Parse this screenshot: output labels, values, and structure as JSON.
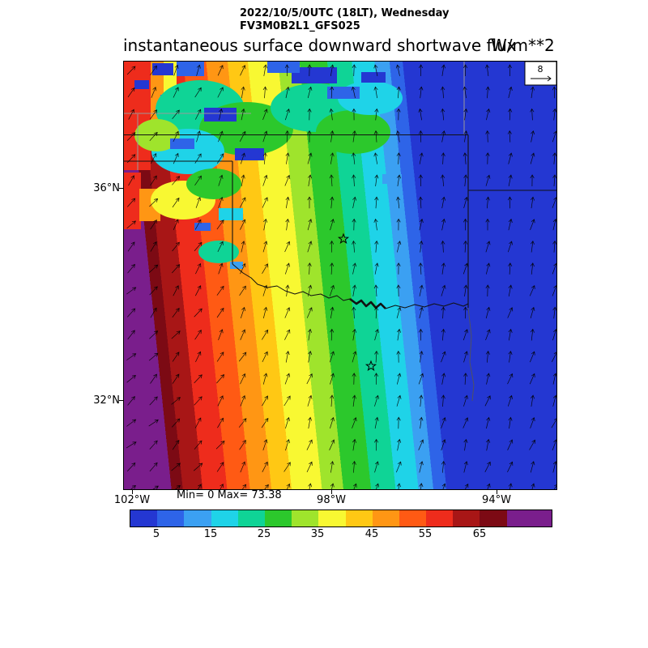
{
  "header": {
    "line1": "2022/10/5/0UTC (18LT), Wednesday",
    "line2": "FV3M0B2L1_GFS025"
  },
  "title": {
    "text": "instantaneous surface downward shortwave flux",
    "units": "W/m**2"
  },
  "stats": {
    "text": "Min= 0 Max= 73.38"
  },
  "ref_vector": {
    "label": "8"
  },
  "axes": {
    "lat": [
      {
        "label": "36°N"
      },
      {
        "label": "32°N"
      }
    ],
    "lon": [
      {
        "label": "102°W"
      },
      {
        "label": "98°W"
      },
      {
        "label": "94°W"
      }
    ]
  },
  "colorbar": {
    "ticks": [
      "5",
      "15",
      "25",
      "35",
      "45",
      "55",
      "65"
    ],
    "colors": [
      "#2437d2",
      "#2e64e8",
      "#3ba0f2",
      "#1fd3e8",
      "#0fd496",
      "#2cc82c",
      "#9fe42c",
      "#f8f832",
      "#ffc814",
      "#ff9614",
      "#ff5a14",
      "#ee2c1c",
      "#a81616",
      "#7c0a14",
      "#7a1e8c"
    ]
  },
  "chart_data": {
    "type": "heatmap",
    "title": "instantaneous surface downward shortwave flux",
    "units": "W/m**2",
    "valid_time": "2022/10/5/0UTC (18LT), Wednesday",
    "model_run": "FV3M0B2L1_GFS025",
    "min": 0,
    "max": 73.38,
    "contour_levels": [
      0,
      5,
      10,
      15,
      20,
      25,
      30,
      35,
      40,
      45,
      50,
      55,
      60,
      65,
      70
    ],
    "colorbar_tick_values": [
      5,
      15,
      25,
      35,
      45,
      55,
      65
    ],
    "lat_tick_labels": [
      "36°N",
      "32°N"
    ],
    "lon_tick_labels": [
      "102°W",
      "98°W",
      "94°W"
    ],
    "wind_reference_magnitude": 8,
    "field_description": "Flux highest (>70 W/m**2, dark red/purple) at the western map edge, decreasing eastward in near-vertical bands through red, orange, yellow, green and cyan to 0 (blue) over the eastern half; speckled low-flux cloud shadows (blue/green patches) over the northwest quadrant.",
    "overlays": [
      "wind vector field",
      "state borders (Oklahoma, Texas, Red River)",
      "two star station markers",
      "reference vector box"
    ]
  }
}
